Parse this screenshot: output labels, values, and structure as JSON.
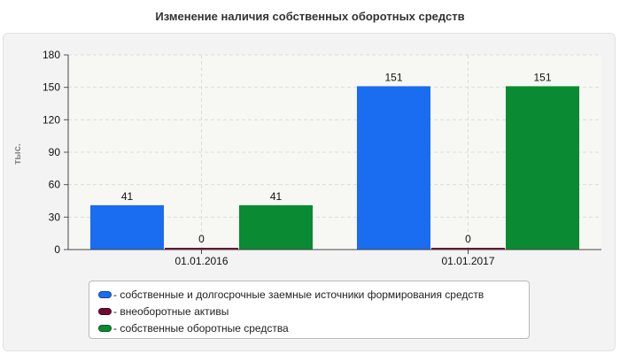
{
  "chart_data": {
    "type": "bar",
    "title": "Изменение наличия собственных оборотных средств",
    "ylabel": "тыс.",
    "xlabel": "",
    "categories": [
      "01.01.2016",
      "01.01.2017"
    ],
    "ylim": [
      0,
      180
    ],
    "yticks": [
      0,
      30,
      60,
      90,
      120,
      150,
      180
    ],
    "grid": true,
    "legend_position": "bottom",
    "series": [
      {
        "name": "- собственные и долгосрочные заемные источники формирования средств",
        "values": [
          41,
          151
        ],
        "color": "#1a6cf0"
      },
      {
        "name": "- внеоборотные активы",
        "values": [
          0,
          0
        ],
        "color": "#6e0a2e"
      },
      {
        "name": "- собственные оборотные средства",
        "values": [
          41,
          151
        ],
        "color": "#0a8a32"
      }
    ]
  }
}
